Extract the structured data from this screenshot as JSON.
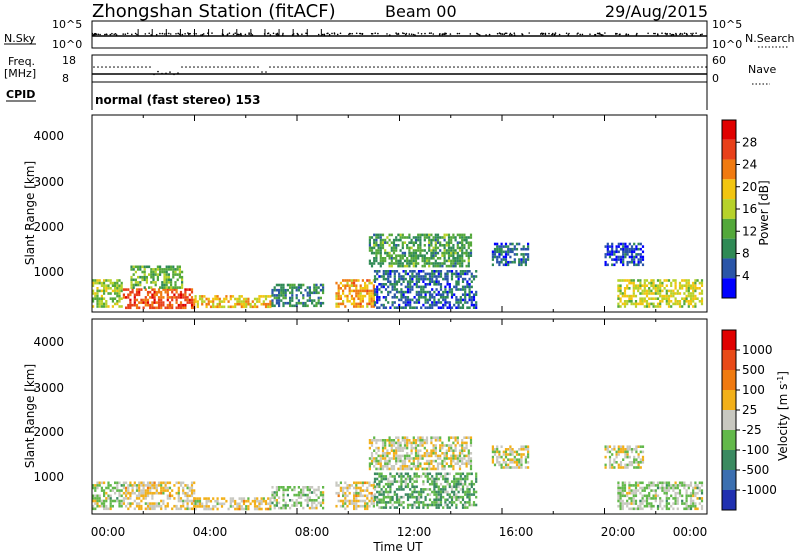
{
  "header": {
    "station": "Zhongshan Station (fitACF)",
    "beam": "Beam 00",
    "date": "29/Aug/2015"
  },
  "status_panel": {
    "nsky_label": "N.Sky",
    "nsky_ticks": [
      "10^5",
      "10^0"
    ],
    "nsearch_label": "N.Search",
    "nsearch_ticks": [
      "10^5",
      "10^0"
    ],
    "freq_label": "Freq.",
    "freq_unit": "[MHz]",
    "freq_ticks": [
      "18",
      "8"
    ],
    "nave_label": "Nave",
    "nave_ticks": [
      "60",
      "0"
    ],
    "cpid_label": "CPID",
    "mode_text": "normal (fast stereo) 153"
  },
  "x_axis": {
    "label": "Time UT",
    "tick_labels": [
      "00:00",
      "04:00",
      "08:00",
      "12:00",
      "16:00",
      "20:00",
      "00:00"
    ]
  },
  "panels": {
    "power": {
      "y_label": "Slant Range [km]",
      "y_ticks": [
        "1000",
        "2000",
        "3000",
        "4000"
      ],
      "colorbar_label": "Power [dB]",
      "colorbar_ticks": [
        "4",
        "8",
        "12",
        "16",
        "20",
        "24",
        "28"
      ]
    },
    "velocity": {
      "y_label": "Slant Range [km]",
      "y_ticks": [
        "1000",
        "2000",
        "3000",
        "4000"
      ],
      "colorbar_label": "Velocity [m s",
      "colorbar_label_sup": "-1",
      "colorbar_label_end": "]",
      "colorbar_ticks": [
        "1000",
        "500",
        "100",
        "25",
        "-25",
        "-100",
        "-500",
        "-1000"
      ]
    }
  },
  "colors": {
    "power_scale": [
      "#0000ff",
      "#2a55a8",
      "#2f8a55",
      "#53a83a",
      "#b7d22a",
      "#f2c510",
      "#f07a10",
      "#e8401a",
      "#e00000"
    ],
    "velocity_scale": [
      "#2030b0",
      "#3b6fb0",
      "#3a8a60",
      "#62b84a",
      "#c8c8c0",
      "#f2b01a",
      "#f07a10",
      "#e84a18",
      "#e00000"
    ]
  },
  "chart_data": [
    {
      "type": "heatmap",
      "title": "Power",
      "xlabel": "Time UT",
      "ylabel": "Slant Range [km]",
      "xlim": [
        0,
        24
      ],
      "ylim": [
        180,
        4500
      ],
      "value_range": [
        0,
        30
      ],
      "unit": "dB",
      "patches": [
        {
          "t": [
            0.0,
            1.2
          ],
          "r": [
            300,
            900
          ],
          "p": 14
        },
        {
          "t": [
            1.2,
            4.0
          ],
          "r": [
            300,
            700
          ],
          "p": 24
        },
        {
          "t": [
            1.5,
            3.5
          ],
          "r": [
            700,
            1200
          ],
          "p": 12
        },
        {
          "t": [
            4.0,
            7.0
          ],
          "r": [
            300,
            550
          ],
          "p": 18
        },
        {
          "t": [
            7.0,
            9.0
          ],
          "r": [
            300,
            800
          ],
          "p": 8
        },
        {
          "t": [
            9.5,
            11.0
          ],
          "r": [
            300,
            900
          ],
          "p": 20
        },
        {
          "t": [
            10.8,
            14.8
          ],
          "r": [
            1200,
            1900
          ],
          "p": 10
        },
        {
          "t": [
            11.0,
            15.0
          ],
          "r": [
            300,
            1100
          ],
          "p": 6
        },
        {
          "t": [
            15.6,
            17.0
          ],
          "r": [
            1200,
            1700
          ],
          "p": 6
        },
        {
          "t": [
            20.0,
            21.5
          ],
          "r": [
            1200,
            1700
          ],
          "p": 4
        },
        {
          "t": [
            20.5,
            23.8
          ],
          "r": [
            300,
            900
          ],
          "p": 16
        }
      ]
    },
    {
      "type": "heatmap",
      "title": "Velocity",
      "xlabel": "Time UT",
      "ylabel": "Slant Range [km]",
      "xlim": [
        0,
        24
      ],
      "ylim": [
        180,
        4500
      ],
      "value_range": [
        -1000,
        1000
      ],
      "unit": "m s-1",
      "patches": [
        {
          "t": [
            0.0,
            1.2
          ],
          "r": [
            300,
            900
          ],
          "v": -100
        },
        {
          "t": [
            1.2,
            4.0
          ],
          "r": [
            300,
            900
          ],
          "v": 100
        },
        {
          "t": [
            4.0,
            7.0
          ],
          "r": [
            300,
            550
          ],
          "v": 100
        },
        {
          "t": [
            7.0,
            9.0
          ],
          "r": [
            300,
            800
          ],
          "v": -100
        },
        {
          "t": [
            9.5,
            11.0
          ],
          "r": [
            300,
            900
          ],
          "v": 100
        },
        {
          "t": [
            10.8,
            14.8
          ],
          "r": [
            1200,
            1900
          ],
          "v": 0
        },
        {
          "t": [
            11.0,
            15.0
          ],
          "r": [
            300,
            1100
          ],
          "v": -300
        },
        {
          "t": [
            15.6,
            17.0
          ],
          "r": [
            1200,
            1700
          ],
          "v": 0
        },
        {
          "t": [
            20.0,
            21.5
          ],
          "r": [
            1200,
            1700
          ],
          "v": 0
        },
        {
          "t": [
            20.5,
            23.8
          ],
          "r": [
            300,
            900
          ],
          "v": -100
        }
      ]
    }
  ]
}
